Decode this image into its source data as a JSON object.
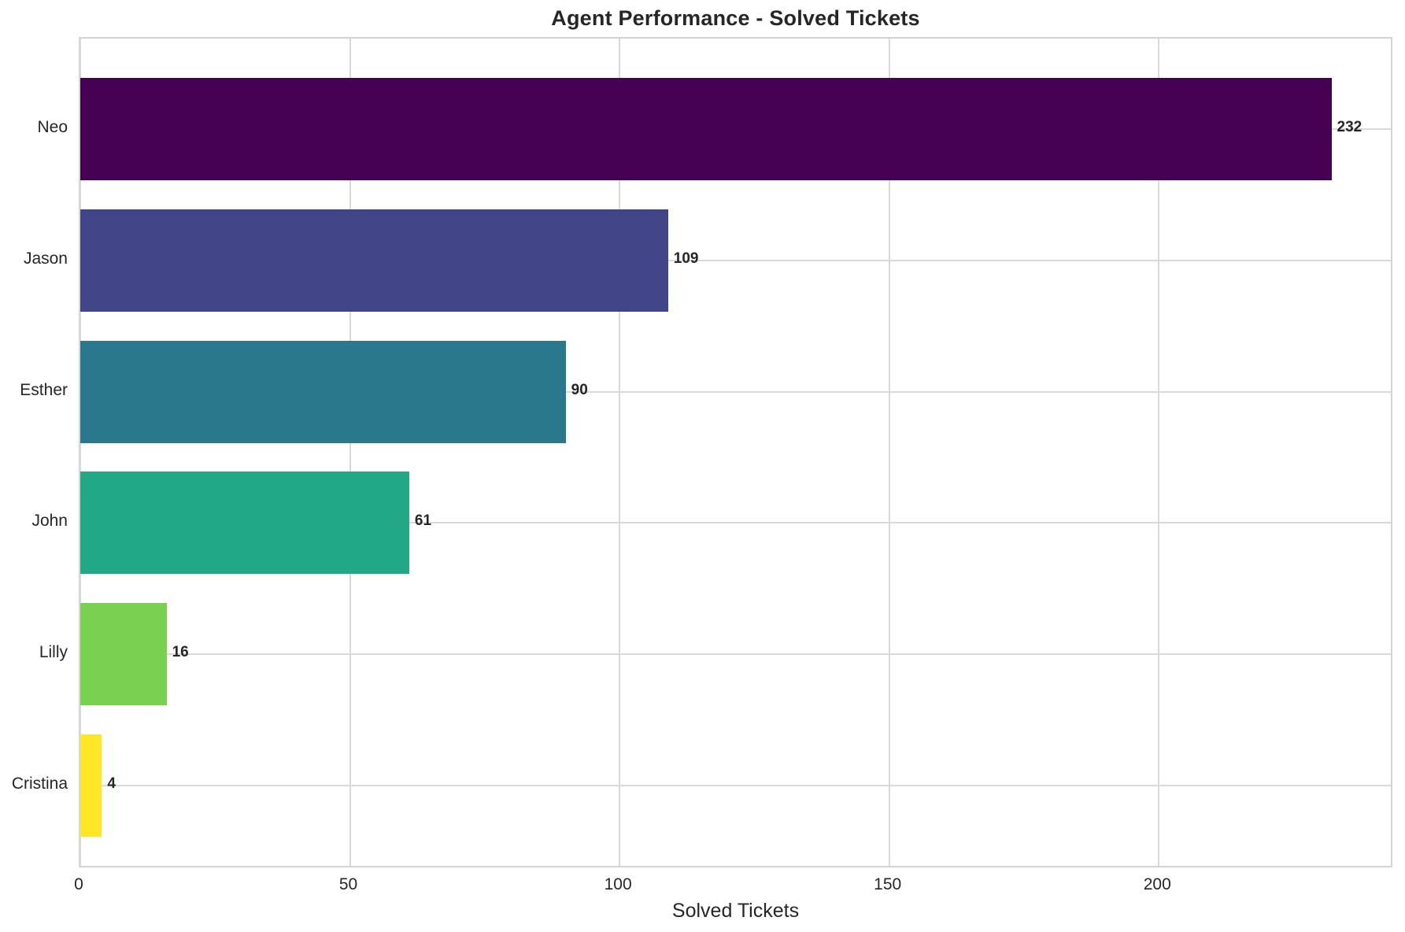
{
  "chart_data": {
    "type": "bar",
    "orientation": "horizontal",
    "title": "Agent Performance - Solved Tickets",
    "xlabel": "Solved Tickets",
    "ylabel": "",
    "categories": [
      "Neo",
      "Jason",
      "Esther",
      "John",
      "Lilly",
      "Cristina"
    ],
    "values": [
      232,
      109,
      90,
      61,
      16,
      4
    ],
    "bar_colors": [
      "#440154",
      "#414487",
      "#2a788e",
      "#22a884",
      "#7ad151",
      "#fde725"
    ],
    "value_labels": [
      "232",
      "109",
      "90",
      "61",
      "16",
      "4"
    ],
    "x_ticks": [
      0,
      50,
      100,
      150,
      200
    ],
    "xlim": [
      0,
      243.6
    ],
    "grid": true,
    "legend": false,
    "colors": {
      "background": "#ffffff",
      "grid": "#d9d9d9",
      "axes_border": "#d4d4d4",
      "text": "#262626"
    }
  }
}
